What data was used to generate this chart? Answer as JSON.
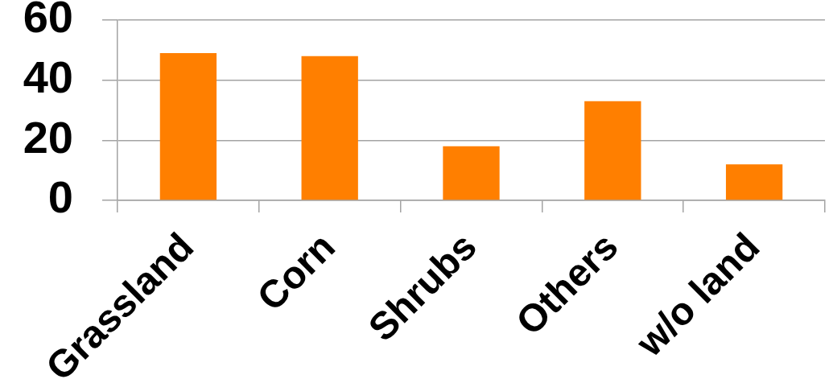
{
  "chart_data": {
    "type": "bar",
    "categories": [
      "Grassland",
      "Corn",
      "Shrubs",
      "Others",
      "w/o land"
    ],
    "values": [
      49,
      48,
      18,
      33,
      12
    ],
    "color": "#ff7f00",
    "ylim": [
      0,
      60
    ],
    "yticks": [
      0,
      20,
      40,
      60
    ],
    "grid": "y"
  }
}
